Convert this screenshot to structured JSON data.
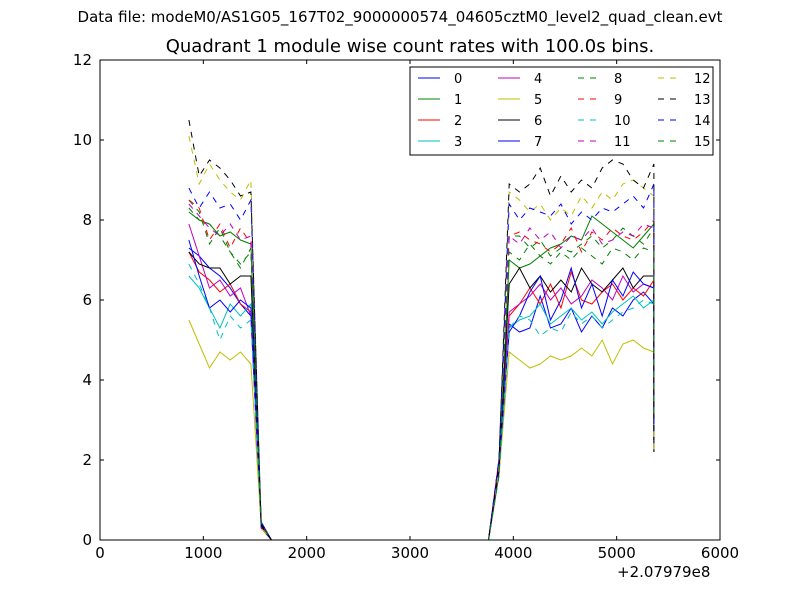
{
  "suptitle": "Data file: modeM0/AS1G05_167T02_9000000574_04605cztM0_level2_quad_clean.evt",
  "chart_data": {
    "type": "line",
    "title": "Quadrant 1 module wise count rates with 100.0s bins.",
    "xlabel": "",
    "ylabel": "",
    "x_offset_label": "+2.07979e8",
    "xlim": [
      0,
      6000
    ],
    "ylim": [
      0,
      12
    ],
    "xticks": [
      0,
      1000,
      2000,
      3000,
      4000,
      5000,
      6000
    ],
    "yticks": [
      0,
      2,
      4,
      6,
      8,
      10,
      12
    ],
    "grid": false,
    "legend_position": "top-right",
    "x": [
      860,
      960,
      1060,
      1160,
      1260,
      1360,
      1460,
      1560,
      1660,
      1760,
      1860,
      1960,
      2060,
      2160,
      2260,
      2360,
      2460,
      2560,
      2660,
      2760,
      2860,
      2960,
      3060,
      3160,
      3260,
      3360,
      3460,
      3560,
      3660,
      3760,
      3860,
      3960,
      4060,
      4160,
      4260,
      4360,
      4460,
      4560,
      4660,
      4760,
      4860,
      4960,
      5060,
      5160,
      5260,
      5360
    ],
    "series": [
      {
        "name": "0",
        "color": "#0000ff",
        "dash": "solid",
        "segA": [
          7.3,
          7.1,
          6.8,
          6.6,
          6.3,
          5.9,
          5.6
        ],
        "segB": [
          5.4,
          5.2,
          5.3,
          6.1,
          5.3,
          5.4,
          5.8,
          5.2,
          5.6,
          5.3,
          5.8,
          5.6,
          6.0,
          6.2,
          5.9
        ]
      },
      {
        "name": "1",
        "color": "#008000",
        "dash": "solid",
        "segA": [
          8.2,
          8.0,
          7.9,
          7.6,
          7.7,
          7.5,
          7.4
        ],
        "segB": [
          7.0,
          6.8,
          6.9,
          7.1,
          7.3,
          7.4,
          7.6,
          7.5,
          8.1,
          7.9,
          7.7,
          7.5,
          7.3,
          7.6,
          7.9
        ]
      },
      {
        "name": "2",
        "color": "#ff0000",
        "dash": "solid",
        "segA": [
          7.2,
          6.7,
          6.5,
          6.2,
          6.4,
          5.9,
          5.7
        ],
        "segB": [
          5.6,
          5.9,
          6.3,
          5.9,
          6.4,
          5.8,
          6.7,
          6.0,
          5.9,
          6.2,
          6.4,
          6.0,
          6.3,
          6.1,
          6.5
        ]
      },
      {
        "name": "3",
        "color": "#00bfbf",
        "dash": "solid",
        "segA": [
          6.6,
          6.3,
          5.8,
          5.3,
          5.9,
          5.6,
          5.9
        ],
        "segB": [
          5.3,
          5.5,
          5.6,
          5.9,
          5.4,
          5.6,
          5.8,
          5.5,
          5.7,
          5.4,
          5.7,
          5.9,
          6.1,
          5.8,
          6.0
        ]
      },
      {
        "name": "4",
        "color": "#bf00bf",
        "dash": "solid",
        "segA": [
          7.9,
          7.1,
          6.3,
          6.5,
          6.1,
          6.3,
          5.6
        ],
        "segB": [
          5.7,
          5.9,
          6.1,
          6.4,
          6.0,
          6.3,
          5.9,
          6.1,
          6.5,
          6.3,
          6.0,
          6.6,
          6.2,
          6.4,
          6.3
        ]
      },
      {
        "name": "5",
        "color": "#bfbf00",
        "dash": "solid",
        "segA": [
          5.5,
          4.9,
          4.3,
          4.7,
          4.5,
          4.7,
          4.4
        ],
        "segB": [
          4.7,
          4.5,
          4.3,
          4.4,
          4.6,
          4.5,
          4.6,
          4.8,
          4.6,
          5.0,
          4.4,
          4.9,
          5.0,
          4.8,
          4.7
        ]
      },
      {
        "name": "6",
        "color": "#000000",
        "dash": "solid",
        "segA": [
          7.2,
          6.9,
          6.8,
          6.8,
          6.4,
          6.6,
          6.6
        ],
        "segB": [
          6.4,
          6.8,
          6.3,
          6.6,
          6.2,
          6.5,
          6.2,
          6.8,
          6.4,
          6.2,
          6.5,
          6.8,
          6.3,
          6.6,
          6.6
        ]
      },
      {
        "name": "7",
        "color": "#0000ff",
        "dash": "solid",
        "segA": [
          7.5,
          6.6,
          5.8,
          6.0,
          5.7,
          6.0,
          5.8
        ],
        "segB": [
          5.2,
          5.6,
          6.2,
          6.6,
          5.5,
          6.0,
          6.8,
          5.8,
          6.4,
          5.6,
          6.5,
          6.1,
          6.7,
          6.4,
          6.3
        ]
      },
      {
        "name": "8",
        "color": "#008000",
        "dash": "dashed",
        "segA": [
          8.5,
          8.2,
          7.4,
          7.8,
          7.2,
          6.8,
          7.3
        ],
        "segB": [
          7.6,
          7.6,
          7.3,
          7.5,
          7.1,
          7.3,
          7.2,
          7.4,
          7.6,
          7.3,
          7.5,
          7.8,
          7.6,
          7.4,
          7.8
        ]
      },
      {
        "name": "9",
        "color": "#ff0000",
        "dash": "dashed",
        "segA": [
          8.5,
          8.3,
          7.5,
          7.9,
          7.3,
          7.8,
          7.4
        ],
        "segB": [
          7.6,
          7.7,
          7.5,
          7.4,
          7.2,
          7.4,
          7.8,
          7.2,
          7.7,
          7.5,
          7.8,
          7.6,
          7.5,
          7.7,
          8.0
        ]
      },
      {
        "name": "10",
        "color": "#00bfbf",
        "dash": "dashed",
        "segA": [
          6.9,
          6.4,
          5.8,
          5.0,
          5.6,
          5.3,
          5.5
        ],
        "segB": [
          5.3,
          5.6,
          5.5,
          5.1,
          5.3,
          5.2,
          5.7,
          5.4,
          5.6,
          5.3,
          5.5,
          5.7,
          5.8,
          6.0,
          5.9
        ]
      },
      {
        "name": "11",
        "color": "#bf00bf",
        "dash": "dashed",
        "segA": [
          8.4,
          8.1,
          7.8,
          7.6,
          7.9,
          7.5,
          7.6
        ],
        "segB": [
          7.6,
          7.4,
          7.8,
          7.5,
          7.7,
          7.3,
          7.6,
          7.5,
          7.8,
          7.4,
          7.5,
          7.7,
          7.6,
          7.9,
          7.8
        ]
      },
      {
        "name": "12",
        "color": "#bfbf00",
        "dash": "dashed",
        "segA": [
          10.1,
          8.9,
          9.4,
          9.0,
          8.7,
          8.5,
          9.0
        ],
        "segB": [
          8.7,
          8.5,
          8.2,
          8.4,
          8.0,
          8.3,
          8.1,
          8.6,
          8.3,
          8.7,
          8.5,
          8.9,
          9.0,
          8.8,
          8.6
        ]
      },
      {
        "name": "13",
        "color": "#000000",
        "dash": "dashed",
        "segA": [
          10.5,
          9.1,
          9.5,
          9.3,
          9.0,
          8.6,
          8.7
        ],
        "segB": [
          8.9,
          8.7,
          8.9,
          9.3,
          8.6,
          9.1,
          8.7,
          9.0,
          8.8,
          9.3,
          9.5,
          9.4,
          9.0,
          8.8,
          9.4
        ]
      },
      {
        "name": "14",
        "color": "#0000ff",
        "dash": "dashed",
        "segA": [
          8.8,
          8.3,
          8.7,
          8.3,
          8.4,
          8.0,
          8.5
        ],
        "segB": [
          8.4,
          8.0,
          8.3,
          8.2,
          8.1,
          8.4,
          7.9,
          8.2,
          8.0,
          8.3,
          8.2,
          8.4,
          8.6,
          8.3,
          8.9
        ]
      },
      {
        "name": "15",
        "color": "#008000",
        "dash": "dashed",
        "segA": [
          8.3,
          8.0,
          7.9,
          7.6,
          7.2,
          6.9,
          7.2
        ],
        "segB": [
          7.2,
          7.0,
          7.4,
          7.1,
          6.9,
          7.2,
          7.0,
          7.3,
          7.1,
          6.9,
          7.3,
          7.2,
          7.0,
          7.3,
          7.2
        ]
      }
    ]
  }
}
